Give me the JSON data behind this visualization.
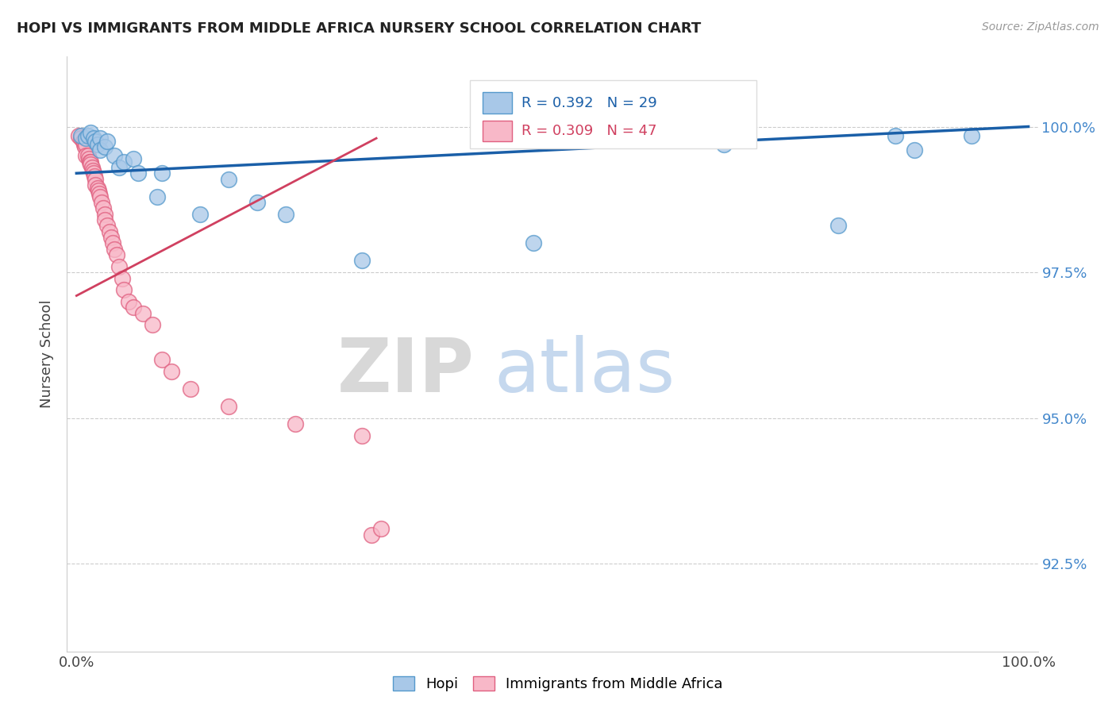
{
  "title": "HOPI VS IMMIGRANTS FROM MIDDLE AFRICA NURSERY SCHOOL CORRELATION CHART",
  "source": "Source: ZipAtlas.com",
  "ylabel": "Nursery School",
  "ytick_values": [
    92.5,
    95.0,
    97.5,
    100.0
  ],
  "ylim": [
    91.0,
    101.2
  ],
  "xlim": [
    -0.01,
    1.01
  ],
  "xtick_values": [
    0.0,
    0.25,
    0.5,
    0.75,
    1.0
  ],
  "xtick_labels": [
    "0.0%",
    "",
    "",
    "",
    "100.0%"
  ],
  "legend_blue_r": "R = 0.392",
  "legend_blue_n": "N = 29",
  "legend_pink_r": "R = 0.309",
  "legend_pink_n": "N = 47",
  "hopi_color": "#a8c8e8",
  "hopi_edge_color": "#5599cc",
  "pink_color": "#f8b8c8",
  "pink_edge_color": "#e06080",
  "blue_line_color": "#1a5fa8",
  "pink_line_color": "#d04060",
  "right_tick_color": "#4488cc",
  "hopi_points_x": [
    0.005,
    0.01,
    0.012,
    0.015,
    0.018,
    0.02,
    0.022,
    0.025,
    0.025,
    0.03,
    0.032,
    0.04,
    0.045,
    0.05,
    0.06,
    0.065,
    0.085,
    0.09,
    0.13,
    0.16,
    0.19,
    0.22,
    0.3,
    0.48,
    0.68,
    0.8,
    0.86,
    0.88,
    0.94
  ],
  "hopi_points_y": [
    99.85,
    99.8,
    99.85,
    99.9,
    99.8,
    99.75,
    99.7,
    99.8,
    99.6,
    99.65,
    99.75,
    99.5,
    99.3,
    99.4,
    99.45,
    99.2,
    98.8,
    99.2,
    98.5,
    99.1,
    98.7,
    98.5,
    97.7,
    98.0,
    99.7,
    98.3,
    99.85,
    99.6,
    99.85
  ],
  "pink_points_x": [
    0.002,
    0.005,
    0.007,
    0.008,
    0.009,
    0.01,
    0.01,
    0.012,
    0.013,
    0.014,
    0.015,
    0.015,
    0.016,
    0.017,
    0.018,
    0.019,
    0.02,
    0.02,
    0.022,
    0.023,
    0.024,
    0.025,
    0.026,
    0.028,
    0.03,
    0.03,
    0.032,
    0.035,
    0.036,
    0.038,
    0.04,
    0.042,
    0.045,
    0.048,
    0.05,
    0.055,
    0.06,
    0.07,
    0.08,
    0.09,
    0.1,
    0.12,
    0.16,
    0.23,
    0.3,
    0.31,
    0.32
  ],
  "pink_points_y": [
    99.85,
    99.8,
    99.75,
    99.7,
    99.65,
    99.7,
    99.5,
    99.5,
    99.45,
    99.4,
    99.4,
    99.35,
    99.3,
    99.25,
    99.2,
    99.15,
    99.1,
    99.0,
    98.95,
    98.9,
    98.85,
    98.8,
    98.7,
    98.6,
    98.5,
    98.4,
    98.3,
    98.2,
    98.1,
    98.0,
    97.9,
    97.8,
    97.6,
    97.4,
    97.2,
    97.0,
    96.9,
    96.8,
    96.6,
    96.0,
    95.8,
    95.5,
    95.2,
    94.9,
    94.7,
    93.0,
    93.1
  ],
  "blue_line_x": [
    0.0,
    1.0
  ],
  "blue_line_y": [
    99.2,
    100.0
  ],
  "pink_line_x": [
    0.0,
    0.315
  ],
  "pink_line_y": [
    97.1,
    99.8
  ],
  "watermark_zip": "ZIP",
  "watermark_atlas": "atlas",
  "background_color": "#ffffff"
}
